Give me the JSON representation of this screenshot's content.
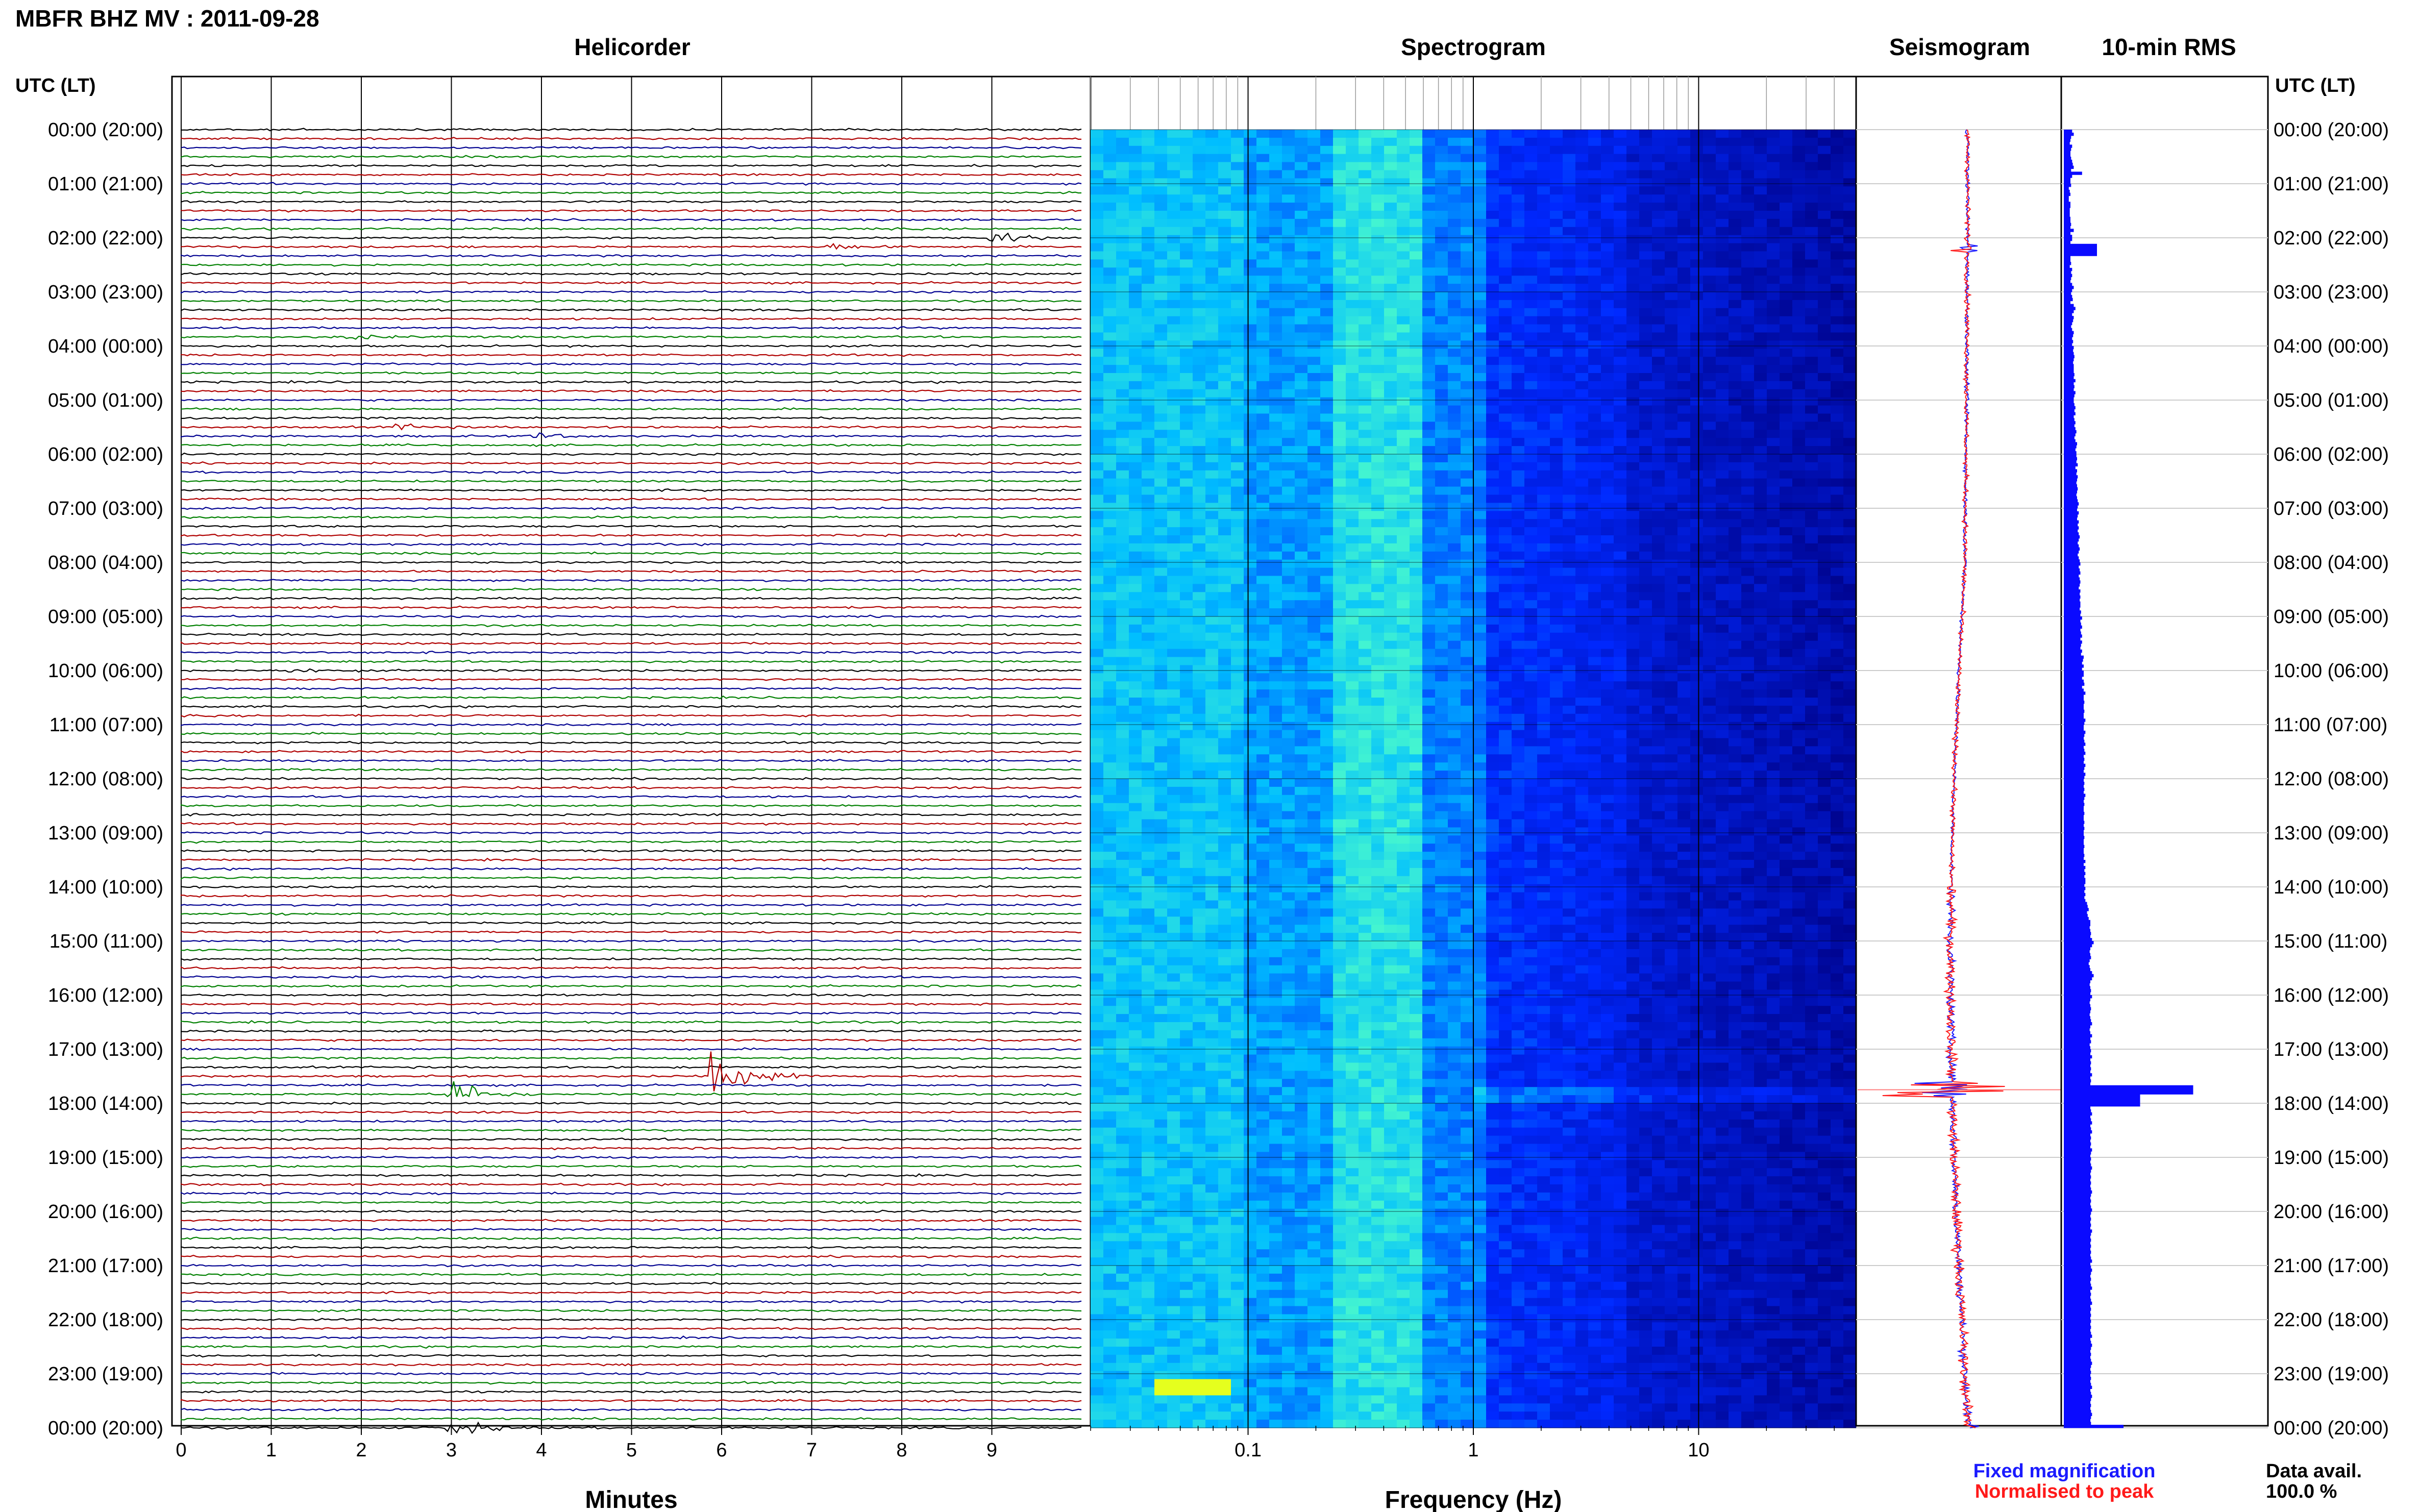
{
  "header": {
    "station": "MBFR BHZ MV : 2011-09-28"
  },
  "panels": {
    "helicorder": "Helicorder",
    "spectrogram": "Spectrogram",
    "seismogram": "Seismogram",
    "rms": "10-min RMS"
  },
  "axis": {
    "time_left_label": "UTC (LT)",
    "time_right_label": "UTC (LT)",
    "minutes_label": "Minutes",
    "frequency_label": "Frequency (Hz)"
  },
  "legend": {
    "fixed": "Fixed magnification",
    "normalised": "Normalised to peak",
    "fixed_color": "#1a1aff",
    "normalised_color": "#ff1a1a"
  },
  "data_availability": {
    "label": "Data avail.",
    "value": "100.0 %"
  },
  "colors": {
    "trace_black": "#000000",
    "trace_red": "#b00000",
    "trace_blue": "#000090",
    "trace_green": "#008000",
    "rms_bar": "#0a0aff"
  },
  "chart_data": {
    "type": "heatmap",
    "title": "MBFR BHZ MV : 2011-09-28",
    "time_ticks": [
      "00:00 (20:00)",
      "01:00 (21:00)",
      "02:00 (22:00)",
      "03:00 (23:00)",
      "04:00 (00:00)",
      "05:00 (01:00)",
      "06:00 (02:00)",
      "07:00 (03:00)",
      "08:00 (04:00)",
      "09:00 (05:00)",
      "10:00 (06:00)",
      "11:00 (07:00)",
      "12:00 (08:00)",
      "13:00 (09:00)",
      "14:00 (10:00)",
      "15:00 (11:00)",
      "16:00 (12:00)",
      "17:00 (13:00)",
      "18:00 (14:00)",
      "19:00 (15:00)",
      "20:00 (16:00)",
      "21:00 (17:00)",
      "22:00 (18:00)",
      "23:00 (19:00)",
      "00:00 (20:00)"
    ],
    "minute_ticks": [
      "0",
      "1",
      "2",
      "3",
      "4",
      "5",
      "6",
      "7",
      "8",
      "9"
    ],
    "minute_range": [
      0,
      10
    ],
    "frequency_ticks": [
      {
        "value": 0.1,
        "label": "0.1"
      },
      {
        "value": 1,
        "label": "1"
      },
      {
        "value": 10,
        "label": "10"
      }
    ],
    "frequency_range": [
      0.02,
      50
    ],
    "frequency_scale": "log",
    "helicorder_events": [
      {
        "hour": 2.0,
        "minute": 9.0,
        "amplitude": 3,
        "color": "red"
      },
      {
        "hour": 2.2,
        "minute": 7.2,
        "amplitude": 1.5,
        "color": "blue"
      },
      {
        "hour": 3.8,
        "minute": 1.8,
        "amplitude": 1.5,
        "color": "green"
      },
      {
        "hour": 5.5,
        "minute": 2.4,
        "amplitude": 1.5,
        "color": "red"
      },
      {
        "hour": 5.7,
        "minute": 3.9,
        "amplitude": 1.5,
        "color": "blue"
      },
      {
        "hour": 10.0,
        "minute": 1.2,
        "amplitude": 1.2,
        "color": "black"
      },
      {
        "hour": 17.8,
        "minute": 3.0,
        "amplitude": 8,
        "color": "green"
      },
      {
        "hour": 17.5,
        "minute": 5.9,
        "amplitude": 10,
        "color": "blue"
      },
      {
        "hour": 17.5,
        "minute": 6.6,
        "amplitude": 1.5,
        "color": "red"
      },
      {
        "hour": 24.0,
        "minute": 3.0,
        "amplitude": 5,
        "color": "green"
      }
    ],
    "rms_10min_relative": [
      0.25,
      0.3,
      0.22,
      0.2,
      0.18,
      0.25,
      0.22,
      0.2,
      0.2,
      0.22,
      0.25,
      0.27,
      0.3,
      0.22,
      0.55,
      0.25,
      0.2,
      0.2,
      0.22,
      0.15,
      0.18,
      0.2,
      0.15,
      0.15,
      0.2,
      0.2,
      0.18,
      0.18,
      0.18,
      0.2,
      0.2,
      0.22,
      0.2,
      0.3,
      0.2,
      0.25,
      0.25,
      0.2,
      0.2,
      0.22,
      0.3,
      0.25,
      0.2,
      0.2,
      0.22,
      0.18,
      0.25,
      0.22,
      0.25,
      0.22,
      0.2,
      0.25,
      0.3,
      0.25,
      0.22,
      0.25,
      0.27,
      0.2,
      0.3,
      0.35,
      0.3,
      0.25,
      0.3,
      0.28,
      0.25,
      0.22,
      0.25,
      0.3,
      0.28,
      0.25,
      0.28,
      0.25,
      0.3,
      0.28,
      0.3,
      0.32,
      0.3,
      0.28,
      0.3,
      0.3,
      0.3,
      0.32,
      0.3,
      0.35,
      0.3,
      0.32,
      0.3,
      0.35,
      0.32,
      0.3,
      0.3,
      0.32,
      0.35,
      0.32,
      0.35,
      0.3,
      0.32,
      0.35,
      0.32,
      0.35,
      0.38,
      0.35,
      0.32,
      0.35,
      0.4,
      0.38,
      0.35,
      0.38,
      0.38,
      0.4,
      0.38,
      0.42,
      0.35,
      0.4,
      0.38,
      0.42,
      0.4,
      0.38,
      0.4,
      0.42,
      0.4,
      0.38,
      0.4,
      0.42,
      0.45,
      0.42,
      0.4,
      0.45,
      0.42,
      0.4,
      0.45,
      0.42,
      0.45,
      0.42,
      0.45,
      0.48,
      0.45,
      0.42,
      0.45,
      0.48,
      0.45,
      0.42,
      0.45,
      0.48,
      0.5,
      0.45,
      0.48,
      0.5,
      0.45,
      0.48,
      0.5,
      0.48,
      0.45,
      0.5,
      0.48,
      0.5,
      0.48,
      0.5,
      0.5,
      0.48,
      0.52,
      0.5,
      0.55,
      0.5,
      0.52,
      0.55,
      0.5,
      0.52,
      0.55,
      0.5,
      0.55,
      0.52,
      0.5,
      0.55,
      0.52,
      0.6,
      0.58,
      0.55,
      0.6,
      0.55,
      0.6,
      0.6,
      0.55,
      0.6,
      0.62,
      0.55,
      0.6,
      0.65,
      0.6,
      0.6,
      0.62,
      0.6,
      0.6,
      0.62,
      0.6,
      0.6,
      0.65,
      0.62,
      0.6,
      0.6,
      0.65,
      0.62,
      0.6,
      0.62,
      0.65,
      0.6,
      0.62,
      0.65,
      0.6,
      0.62,
      0.6,
      0.65,
      0.62,
      0.6,
      0.65,
      0.62,
      0.6,
      0.62,
      0.6,
      0.62,
      0.6,
      0.65,
      0.62,
      0.6,
      0.62,
      0.6,
      0.6,
      0.62,
      0.6,
      0.6,
      0.62,
      0.6,
      0.62,
      0.6,
      0.6,
      0.62,
      0.6,
      0.6,
      0.62,
      0.6,
      0.6,
      0.62,
      0.6,
      0.65,
      0.6,
      0.65,
      0.62,
      0.65,
      0.62,
      0.65,
      0.65,
      0.62,
      0.65,
      0.62,
      0.65,
      0.62,
      0.65,
      0.7,
      0.72,
      0.75,
      0.7,
      0.72,
      0.75,
      0.8,
      0.8,
      0.78,
      0.8,
      0.82,
      0.8,
      0.85,
      0.9,
      0.85,
      0.8,
      0.78,
      0.8,
      0.82,
      0.78,
      0.75,
      0.78,
      0.8,
      0.85,
      0.9,
      0.85,
      0.8,
      0.78,
      0.8,
      0.82,
      0.8,
      0.85,
      0.8,
      0.78,
      0.8,
      0.82,
      0.8,
      0.78,
      0.8,
      0.82,
      0.85,
      0.8,
      0.78,
      0.8,
      0.85,
      0.8,
      0.82,
      0.78,
      0.8,
      0.82,
      0.8,
      0.85,
      0.8,
      0.82,
      0.8,
      0.82,
      0.8,
      0.85,
      0.8,
      0.82,
      0.8,
      0.82,
      0.8,
      0.82,
      0.8,
      0.82,
      0.8,
      0.82,
      0.8,
      0.82,
      0.85,
      0.8,
      0.82,
      0.85,
      0.8,
      0.82,
      0.85,
      0.8,
      0.82,
      0.8,
      0.82,
      0.8,
      0.85,
      0.82,
      0.8,
      0.82,
      0.8,
      0.82,
      0.85,
      0.82,
      0.8,
      0.82,
      0.8,
      0.82,
      0.8,
      0.82,
      0.85,
      0.82,
      0.8,
      0.82,
      0.8,
      0.82,
      0.85,
      0.82,
      0.8,
      0.82,
      0.8,
      0.82,
      0.8,
      0.85,
      0.82,
      0.8,
      0.82,
      0.8,
      0.82,
      0.8,
      0.82,
      0.8,
      0.82,
      0.85,
      0.8,
      0.82,
      0.85,
      0.82,
      0.8,
      0.82,
      0.8,
      0.82,
      0.85,
      0.8,
      0.82,
      0.8,
      0.82,
      0.85,
      0.8,
      0.82,
      0.8,
      0.82,
      0.8,
      0.82,
      0.8,
      0.82,
      0.8,
      0.82,
      0.85,
      0.8,
      0.82,
      0.85,
      0.82,
      0.8,
      0.82,
      0.8,
      0.82,
      0.85,
      0.82,
      0.8,
      0.82,
      0.8,
      0.82,
      0.8,
      0.82,
      0.85,
      0.8,
      0.82,
      0.85,
      0.82,
      0.8,
      0.82,
      0.8,
      0.82,
      0.85,
      0.82,
      0.8,
      0.82,
      0.8
    ],
    "rms_peaks": [
      {
        "hour": 2.2,
        "value": 1.0
      },
      {
        "hour": 17.75,
        "value": 3.9
      },
      {
        "hour": 17.92,
        "value": 2.3
      },
      {
        "hour": 24.0,
        "value": 1.8
      }
    ]
  }
}
